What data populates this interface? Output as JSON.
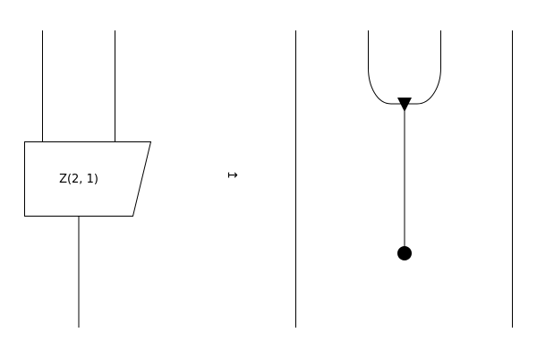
{
  "diagram": {
    "box_label": "Z(2, 1)",
    "maps_to_symbol": "↦"
  },
  "colors": {
    "stroke": "#000000",
    "background": "#ffffff"
  }
}
